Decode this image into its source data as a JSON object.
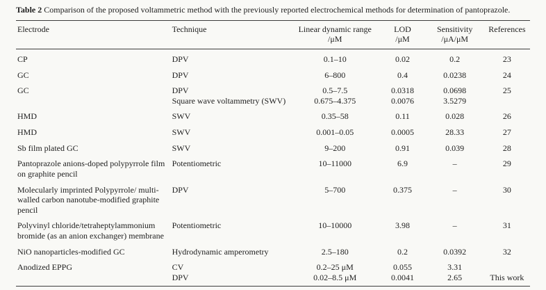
{
  "page": {
    "background": "#f9f9f6",
    "text_color": "#1e1e1e",
    "rule_color": "#3c3c3c"
  },
  "caption": {
    "label": "Table 2",
    "text": "Comparison of the proposed voltammetric method with the previously reported electrochemical methods for determination of pantoprazole."
  },
  "table": {
    "header": [
      {
        "lines": [
          "Electrode"
        ],
        "align": "left"
      },
      {
        "lines": [
          "Technique"
        ],
        "align": "left"
      },
      {
        "lines": [
          "Linear dynamic range",
          "/μM"
        ],
        "align": "center"
      },
      {
        "lines": [
          "LOD",
          "/μM"
        ],
        "align": "center"
      },
      {
        "lines": [
          "Sensitivity",
          "/μA/μM"
        ],
        "align": "center"
      },
      {
        "lines": [
          "References"
        ],
        "align": "center"
      }
    ],
    "rows": [
      {
        "cells": [
          [
            "CP"
          ],
          [
            "DPV"
          ],
          [
            "0.1–10"
          ],
          [
            "0.02"
          ],
          [
            "0.2"
          ],
          [
            "23"
          ]
        ]
      },
      {
        "cells": [
          [
            "GC"
          ],
          [
            "DPV"
          ],
          [
            "6–800"
          ],
          [
            "0.4"
          ],
          [
            "0.0238"
          ],
          [
            "24"
          ]
        ]
      },
      {
        "cells": [
          [
            "GC"
          ],
          [
            "DPV",
            "Square wave voltammetry (SWV)"
          ],
          [
            "0.5–7.5",
            "0.675–4.375"
          ],
          [
            "0.0318",
            "0.0076"
          ],
          [
            "0.0698",
            "3.5279"
          ],
          [
            "25"
          ]
        ]
      },
      {
        "cells": [
          [
            "HMD"
          ],
          [
            "SWV"
          ],
          [
            "0.35–58"
          ],
          [
            "0.11"
          ],
          [
            "0.028"
          ],
          [
            "26"
          ]
        ]
      },
      {
        "cells": [
          [
            "HMD"
          ],
          [
            "SWV"
          ],
          [
            "0.001–0.05"
          ],
          [
            "0.0005"
          ],
          [
            "28.33"
          ],
          [
            "27"
          ]
        ]
      },
      {
        "cells": [
          [
            "Sb film plated GC"
          ],
          [
            "SWV"
          ],
          [
            "9–200"
          ],
          [
            "0.91"
          ],
          [
            "0.039"
          ],
          [
            "28"
          ]
        ]
      },
      {
        "cells": [
          [
            "Pantoprazole anions-doped polypyrrole film on graphite pencil"
          ],
          [
            "Potentiometric"
          ],
          [
            "10–11000"
          ],
          [
            "6.9"
          ],
          [
            "–"
          ],
          [
            "29"
          ]
        ]
      },
      {
        "cells": [
          [
            "Molecularly imprinted Polypyrrole/ multi-walled carbon nanotube-modified graphite pencil"
          ],
          [
            "DPV"
          ],
          [
            "5–700"
          ],
          [
            "0.375"
          ],
          [
            "–"
          ],
          [
            "30"
          ]
        ]
      },
      {
        "cells": [
          [
            "Polyvinyl chloride/tetraheptylammonium bromide (as an anion exchanger) membrane"
          ],
          [
            "Potentiometric"
          ],
          [
            "10–10000"
          ],
          [
            "3.98"
          ],
          [
            "–"
          ],
          [
            "31"
          ]
        ]
      },
      {
        "cells": [
          [
            "NiO nanoparticles-modified GC"
          ],
          [
            "Hydrodynamic amperometry"
          ],
          [
            "2.5–180"
          ],
          [
            "0.2"
          ],
          [
            "0.0392"
          ],
          [
            "32"
          ]
        ]
      },
      {
        "cells": [
          [
            "Anodized EPPG"
          ],
          [
            "CV",
            "DPV"
          ],
          [
            "0.2–25 μM",
            "0.02–8.5 μM"
          ],
          [
            "0.055",
            "0.0041"
          ],
          [
            "3.31",
            "2.65"
          ],
          [
            "",
            "This work"
          ]
        ]
      }
    ]
  }
}
